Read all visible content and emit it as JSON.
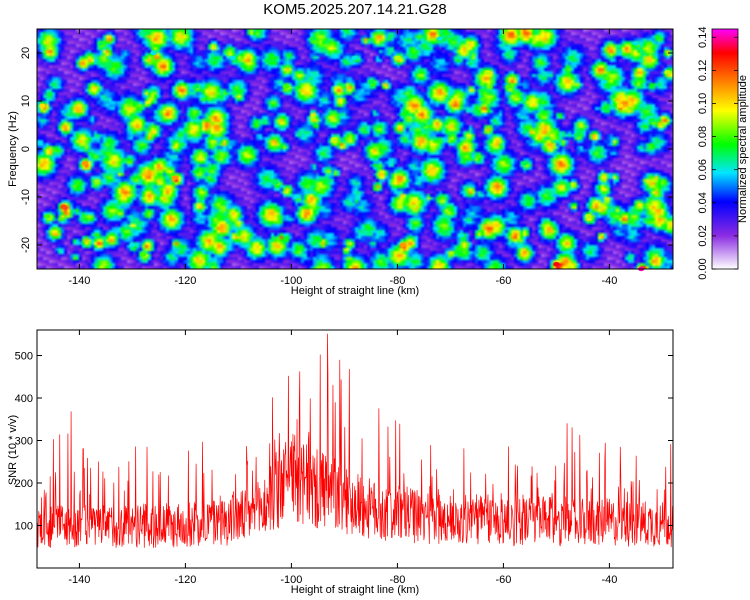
{
  "figure_title": "KOM5.2025.207.14.21.G28",
  "chart_data": [
    {
      "type": "heatmap",
      "xlabel": "Height of straight line (km)",
      "ylabel": "Frequency (Hz)",
      "xlim": [
        -148,
        -28
      ],
      "ylim": [
        -25,
        25
      ],
      "xticks": [
        -140,
        -120,
        -100,
        -80,
        -60,
        -40
      ],
      "yticks": [
        -20,
        -10,
        0,
        10,
        20
      ],
      "grid": false,
      "colorbar": {
        "label": "Normalized spectral amplitude",
        "range": [
          0,
          0.145
        ],
        "ticks": [
          0.0,
          0.02,
          0.04,
          0.06,
          0.08,
          0.1,
          0.12,
          0.14
        ],
        "tick_labels": [
          "0.00",
          "0.02",
          "0.04",
          "0.06",
          "0.08",
          "0.10",
          "0.12",
          "0.14"
        ],
        "colormap": [
          "#ffffff",
          "#8a2be2",
          "#0000ff",
          "#00e5ff",
          "#00ff00",
          "#ffff00",
          "#ff8000",
          "#ff0000",
          "#ff00ff"
        ]
      },
      "peaks": [
        {
          "x": -147,
          "y": 9,
          "v": 0.1
        },
        {
          "x": -146,
          "y": -14,
          "v": 0.08
        },
        {
          "x": -143,
          "y": -12,
          "v": 0.12
        },
        {
          "x": -139,
          "y": -3,
          "v": 0.11
        },
        {
          "x": -136,
          "y": 22,
          "v": 0.07
        },
        {
          "x": -130,
          "y": -20,
          "v": 0.06
        },
        {
          "x": -128,
          "y": -22,
          "v": 0.08
        },
        {
          "x": -126,
          "y": 20,
          "v": 0.06
        },
        {
          "x": -122,
          "y": -6,
          "v": 0.11
        },
        {
          "x": -118,
          "y": 13,
          "v": 0.07
        },
        {
          "x": -115,
          "y": -24,
          "v": 0.07
        },
        {
          "x": -111,
          "y": 19,
          "v": 0.06
        },
        {
          "x": -103,
          "y": -7,
          "v": 0.07
        },
        {
          "x": -101,
          "y": 13,
          "v": 0.08
        },
        {
          "x": -99,
          "y": -10,
          "v": 0.06
        },
        {
          "x": -96,
          "y": 23,
          "v": 0.07
        },
        {
          "x": -92,
          "y": 2,
          "v": 0.09
        },
        {
          "x": -88,
          "y": 19,
          "v": 0.06
        },
        {
          "x": -85,
          "y": 14,
          "v": 0.07
        },
        {
          "x": -80,
          "y": 19,
          "v": 0.09
        },
        {
          "x": -79,
          "y": -20,
          "v": 0.11
        },
        {
          "x": -77,
          "y": -12,
          "v": 0.09
        },
        {
          "x": -75,
          "y": 5,
          "v": 0.07
        },
        {
          "x": -72,
          "y": 23,
          "v": 0.06
        },
        {
          "x": -68,
          "y": -18,
          "v": 0.06
        },
        {
          "x": -63,
          "y": 16,
          "v": 0.09
        },
        {
          "x": -59,
          "y": 13,
          "v": 0.08
        },
        {
          "x": -56,
          "y": -3,
          "v": 0.07
        },
        {
          "x": -50,
          "y": -24,
          "v": 0.13
        },
        {
          "x": -46,
          "y": 3,
          "v": 0.07
        },
        {
          "x": -44,
          "y": -14,
          "v": 0.09
        },
        {
          "x": -41,
          "y": 14,
          "v": 0.06
        },
        {
          "x": -38,
          "y": 9,
          "v": 0.1
        },
        {
          "x": -35,
          "y": 22,
          "v": 0.06
        },
        {
          "x": -34,
          "y": -25,
          "v": 0.14
        },
        {
          "x": -32,
          "y": 6,
          "v": 0.07
        },
        {
          "x": -29,
          "y": 16,
          "v": 0.09
        }
      ]
    },
    {
      "type": "line",
      "xlabel": "Height of straight line (km)",
      "ylabel": "SNR (10 * v/v)",
      "xlim": [
        -148,
        -28
      ],
      "ylim": [
        0,
        560
      ],
      "xticks": [
        -140,
        -120,
        -100,
        -80,
        -60,
        -40
      ],
      "yticks": [
        100,
        200,
        300,
        400,
        500
      ],
      "grid": false,
      "series": [
        {
          "color": "#ff0000",
          "x": [
            -148,
            -146,
            -144,
            -142,
            -140,
            -138,
            -136,
            -134,
            -132,
            -130,
            -128,
            -126,
            -124,
            -122,
            -120,
            -118,
            -116,
            -114,
            -112,
            -110,
            -108,
            -106,
            -104,
            -102,
            -100,
            -98,
            -96,
            -94,
            -93,
            -92,
            -90,
            -88,
            -86,
            -84,
            -82,
            -80,
            -78,
            -76,
            -74,
            -72,
            -70,
            -68,
            -66,
            -64,
            -62,
            -60,
            -58,
            -56,
            -54,
            -52,
            -50,
            -48,
            -46,
            -44,
            -42,
            -40,
            -38,
            -36,
            -34,
            -32,
            -30,
            -28
          ],
          "baseline": [
            95,
            100,
            105,
            98,
            102,
            100,
            95,
            100,
            98,
            102,
            100,
            96,
            100,
            98,
            102,
            105,
            110,
            108,
            112,
            118,
            125,
            135,
            160,
            190,
            210,
            195,
            185,
            180,
            180,
            175,
            160,
            150,
            140,
            135,
            130,
            128,
            125,
            120,
            118,
            115,
            112,
            110,
            112,
            115,
            112,
            110,
            108,
            110,
            112,
            110,
            108,
            110,
            106,
            108,
            110,
            108,
            106,
            104,
            106,
            105,
            103,
            104
          ],
          "upper_envelope": [
            180,
            305,
            300,
            395,
            270,
            300,
            275,
            270,
            280,
            290,
            275,
            300,
            290,
            310,
            270,
            290,
            300,
            275,
            260,
            290,
            285,
            310,
            400,
            405,
            470,
            460,
            480,
            510,
            560,
            475,
            500,
            430,
            410,
            390,
            330,
            350,
            300,
            310,
            290,
            280,
            300,
            285,
            270,
            280,
            275,
            290,
            280,
            285,
            270,
            280,
            275,
            340,
            320,
            285,
            300,
            290,
            340,
            290,
            310,
            300,
            295,
            290
          ]
        }
      ]
    }
  ]
}
